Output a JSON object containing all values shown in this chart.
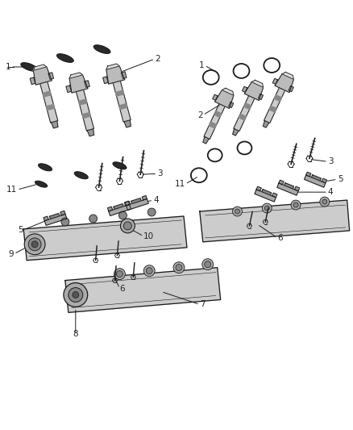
{
  "bg_color": "#ffffff",
  "dark": "#1a1a1a",
  "gray": "#666666",
  "lgray": "#aaaaaa",
  "mgray": "#888888",
  "cgray": "#cccccc",
  "label_color": "#222222"
}
